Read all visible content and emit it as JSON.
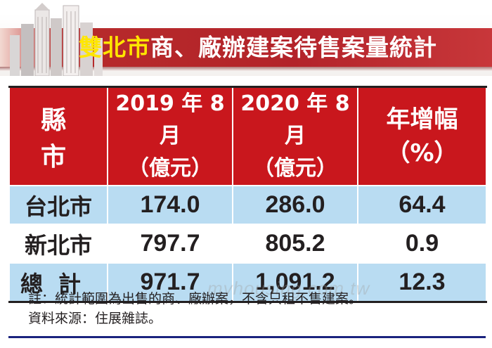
{
  "title": {
    "highlight": "雙北市",
    "rest": "商、廠辦建案待售案量統計"
  },
  "chart_data": {
    "type": "table",
    "columns": [
      {
        "line1": "縣　市",
        "line2": ""
      },
      {
        "line1": "2019 年 8 月",
        "line2": "（億元）"
      },
      {
        "line1": "2020 年 8 月",
        "line2": "（億元）"
      },
      {
        "line1": "年增幅",
        "line2": "（%）"
      }
    ],
    "rows": [
      {
        "label": "台北市",
        "v2019": "174.0",
        "v2020": "286.0",
        "growth": "64.4"
      },
      {
        "label": "新北市",
        "v2019": "797.7",
        "v2020": "805.2",
        "growth": "0.9"
      },
      {
        "label": "總計",
        "v2019": "971.7",
        "v2020": "1,091.2",
        "growth": "12.3"
      }
    ]
  },
  "notes": {
    "line1": "註：統計範圍為出售的商、廠辦案，不含只租不售建案。",
    "line2": "資料來源：住展雜誌。"
  },
  "watermark": "myhousing.com.tw",
  "colors": {
    "header_red": "#c9171d",
    "row_blue": "#b9dcf2",
    "title_yellow": "#ffe600"
  }
}
